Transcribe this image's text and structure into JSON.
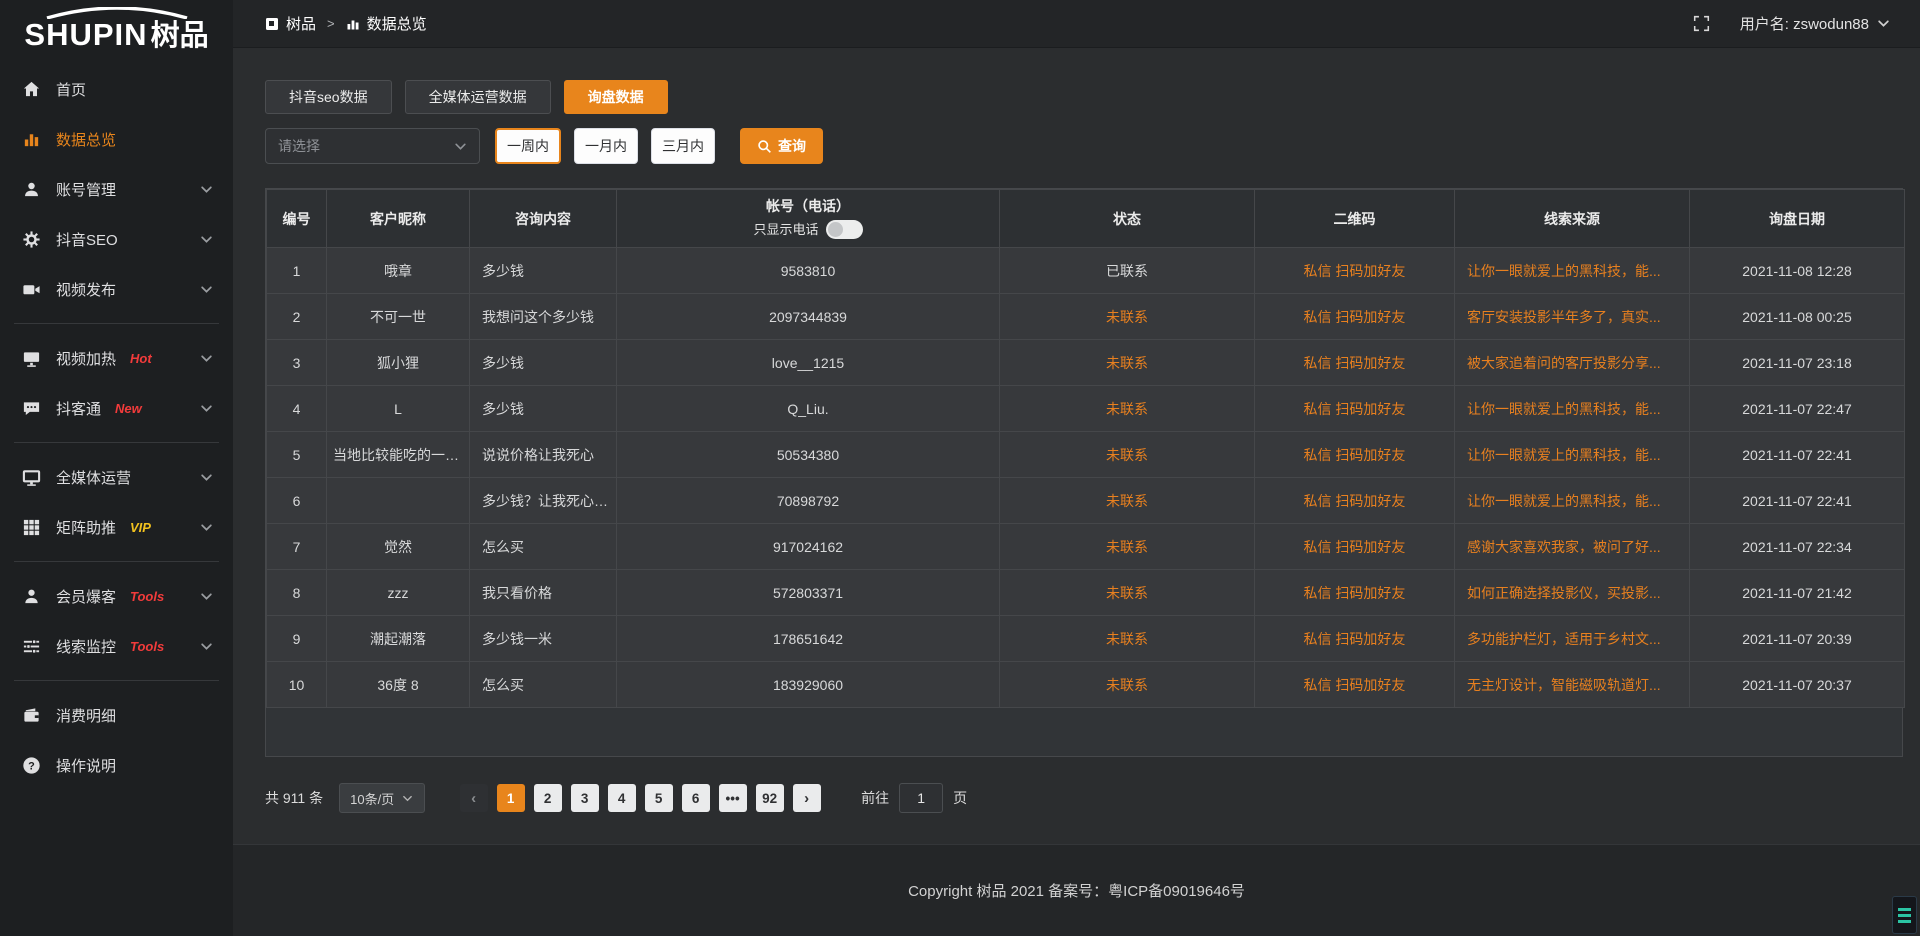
{
  "logo": {
    "en": "SHUPIN",
    "cn": "树品"
  },
  "header": {
    "breadcrumb_root": "树品",
    "breadcrumb_separator": ">",
    "breadcrumb_current": "数据总览",
    "username_label": "用户名: zswodun88"
  },
  "sidebar": {
    "items": [
      {
        "key": "home",
        "label": "首页",
        "icon": "home-icon",
        "active": false,
        "chevron": false,
        "badge": null,
        "divider_after": false
      },
      {
        "key": "data-overview",
        "label": "数据总览",
        "icon": "bar-chart-icon",
        "active": true,
        "chevron": false,
        "badge": null,
        "divider_after": false
      },
      {
        "key": "account-manage",
        "label": "账号管理",
        "icon": "user-icon",
        "active": false,
        "chevron": true,
        "badge": null,
        "divider_after": false
      },
      {
        "key": "douyin-seo",
        "label": "抖音SEO",
        "icon": "gear-icon",
        "active": false,
        "chevron": true,
        "badge": null,
        "divider_after": false
      },
      {
        "key": "video-publish",
        "label": "视频发布",
        "icon": "video-camera-icon",
        "active": false,
        "chevron": true,
        "badge": null,
        "divider_after": true
      },
      {
        "key": "video-heat",
        "label": "视频加热",
        "icon": "monitor-icon",
        "active": false,
        "chevron": true,
        "badge": {
          "text": "Hot",
          "color": "#f23b3b"
        },
        "divider_after": false
      },
      {
        "key": "douketong",
        "label": "抖客通",
        "icon": "chat-bubble-icon",
        "active": false,
        "chevron": true,
        "badge": {
          "text": "New",
          "color": "#f23b3b"
        },
        "divider_after": true
      },
      {
        "key": "media-operation",
        "label": "全媒体运营",
        "icon": "screen-icon",
        "active": false,
        "chevron": true,
        "badge": null,
        "divider_after": false
      },
      {
        "key": "matrix-boost",
        "label": "矩阵助推",
        "icon": "grid-icon",
        "active": false,
        "chevron": true,
        "badge": {
          "text": "VIP",
          "color": "#f2c21e"
        },
        "divider_after": true
      },
      {
        "key": "member-baoke",
        "label": "会员爆客",
        "icon": "member-icon",
        "active": false,
        "chevron": true,
        "badge": {
          "text": "Tools",
          "color": "#f23b3b"
        },
        "divider_after": false
      },
      {
        "key": "clue-monitor",
        "label": "线索监控",
        "icon": "sliders-icon",
        "active": false,
        "chevron": true,
        "badge": {
          "text": "Tools",
          "color": "#f23b3b"
        },
        "divider_after": true
      },
      {
        "key": "consume-detail",
        "label": "消费明细",
        "icon": "wallet-icon",
        "active": false,
        "chevron": false,
        "badge": null,
        "divider_after": false
      },
      {
        "key": "operation-guide",
        "label": "操作说明",
        "icon": "help-icon",
        "active": false,
        "chevron": false,
        "badge": null,
        "divider_after": false
      }
    ]
  },
  "tabs": [
    {
      "key": "douyin-seo-data",
      "label": "抖音seo数据",
      "active": false
    },
    {
      "key": "media-operation-data",
      "label": "全媒体运营数据",
      "active": false
    },
    {
      "key": "inquiry-data",
      "label": "询盘数据",
      "active": true
    }
  ],
  "filters": {
    "select_placeholder": "请选择",
    "range_buttons": [
      {
        "key": "one-week",
        "label": "一周内",
        "selected": true
      },
      {
        "key": "one-month",
        "label": "一月内",
        "selected": false
      },
      {
        "key": "three-months",
        "label": "三月内",
        "selected": false
      }
    ],
    "search_label": "查询"
  },
  "table": {
    "columns": [
      {
        "key": "id",
        "label": "编号"
      },
      {
        "key": "nickname",
        "label": "客户昵称"
      },
      {
        "key": "content",
        "label": "咨询内容"
      },
      {
        "key": "account",
        "label": "帐号（电话）"
      },
      {
        "key": "status",
        "label": "状态"
      },
      {
        "key": "qrcode",
        "label": "二维码"
      },
      {
        "key": "source",
        "label": "线索来源"
      },
      {
        "key": "date",
        "label": "询盘日期"
      }
    ],
    "phone_toggle_label": "只显示电话",
    "rows": [
      {
        "id": "1",
        "nickname": "哦章",
        "content": "多少钱",
        "account": "9583810",
        "status": "已联系",
        "status_type": "contacted",
        "qrcode": "私信 扫码加好友",
        "source": "让你一眼就爱上的黑科技，能...",
        "date": "2021-11-08 12:28"
      },
      {
        "id": "2",
        "nickname": "不可一世",
        "content": "我想问这个多少钱",
        "account": "2097344839",
        "status": "未联系",
        "status_type": "uncontacted",
        "qrcode": "私信 扫码加好友",
        "source": "客厅安装投影半年多了，真实...",
        "date": "2021-11-08 00:25"
      },
      {
        "id": "3",
        "nickname": "狐小狸",
        "content": "多少钱",
        "account": "love__1215",
        "status": "未联系",
        "status_type": "uncontacted",
        "qrcode": "私信 扫码加好友",
        "source": "被大家追着问的客厅投影分享...",
        "date": "2021-11-07 23:18"
      },
      {
        "id": "4",
        "nickname": "L",
        "content": "多少钱",
        "account": "Q_Liu.",
        "status": "未联系",
        "status_type": "uncontacted",
        "qrcode": "私信 扫码加好友",
        "source": "让你一眼就爱上的黑科技，能...",
        "date": "2021-11-07 22:47"
      },
      {
        "id": "5",
        "nickname": "当地比较能吃的一位美女",
        "content": "说说价格让我死心",
        "account": "50534380",
        "status": "未联系",
        "status_type": "uncontacted",
        "qrcode": "私信 扫码加好友",
        "source": "让你一眼就爱上的黑科技，能...",
        "date": "2021-11-07 22:41"
      },
      {
        "id": "6",
        "nickname": "",
        "content": "多少钱？让我死心 看",
        "account": "70898792",
        "status": "未联系",
        "status_type": "uncontacted",
        "qrcode": "私信 扫码加好友",
        "source": "让你一眼就爱上的黑科技，能...",
        "date": "2021-11-07 22:41"
      },
      {
        "id": "7",
        "nickname": "觉然",
        "content": "怎么买",
        "account": "917024162",
        "status": "未联系",
        "status_type": "uncontacted",
        "qrcode": "私信 扫码加好友",
        "source": "感谢大家喜欢我家，被问了好...",
        "date": "2021-11-07 22:34"
      },
      {
        "id": "8",
        "nickname": "zzz",
        "content": "我只看价格",
        "account": "572803371",
        "status": "未联系",
        "status_type": "uncontacted",
        "qrcode": "私信 扫码加好友",
        "source": "如何正确选择投影仪，买投影...",
        "date": "2021-11-07 21:42"
      },
      {
        "id": "9",
        "nickname": "潮起潮落",
        "content": "多少钱一米",
        "account": "178651642",
        "status": "未联系",
        "status_type": "uncontacted",
        "qrcode": "私信 扫码加好友",
        "source": "多功能护栏灯，适用于乡村文...",
        "date": "2021-11-07 20:39"
      },
      {
        "id": "10",
        "nickname": "36度 8",
        "content": "怎么买",
        "account": "183929060",
        "status": "未联系",
        "status_type": "uncontacted",
        "qrcode": "私信 扫码加好友",
        "source": "无主灯设计，智能磁吸轨道灯...",
        "date": "2021-11-07 20:37"
      }
    ]
  },
  "pagination": {
    "total_label": "共 911 条",
    "page_size_label": "10条/页",
    "prev_label": "‹",
    "next_label": "›",
    "pages": [
      "1",
      "2",
      "3",
      "4",
      "5",
      "6",
      "•••",
      "92"
    ],
    "active_page": "1",
    "goto_label": "前往",
    "goto_value": "1",
    "goto_suffix": "页"
  },
  "footer": {
    "copyright": "Copyright 树品 2021 备案号：粤ICP备09019646号"
  },
  "colors": {
    "accent_orange": "#e8851c",
    "link_orange": "#e8801f",
    "status_contacted": "#d8d9da",
    "status_uncontacted": "#e8801f",
    "badge_red": "#f23b3b",
    "badge_gold": "#f2c21e",
    "widget_teal": "#2bc4a4"
  }
}
